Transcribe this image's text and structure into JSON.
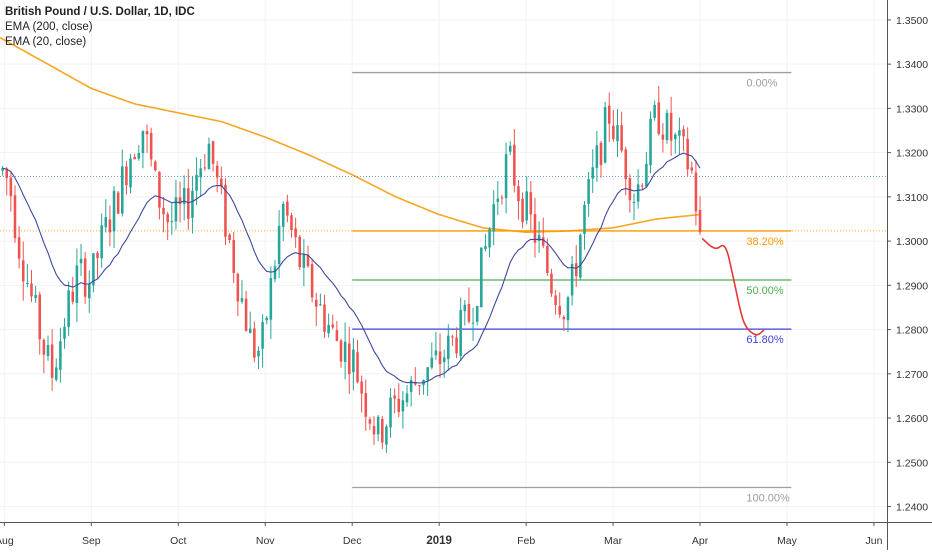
{
  "header": {
    "symbol": "British Pound / U.S. Dollar, 1D, IDC",
    "indicators": [
      "EMA (200, close)",
      "EMA (20, close)"
    ]
  },
  "colors": {
    "up": "#26a69a",
    "down": "#ef5350",
    "ema200": "#f5a623",
    "ema20": "#3d4a9e",
    "fib_0": "#9e9e9e",
    "fib_382": "#ff9800",
    "fib_50": "#4caf50",
    "fib_618": "#3f3fe0",
    "fib_100": "#9e9e9e",
    "hline_dotted": "#5b8bd6",
    "drawing": "#e53935",
    "axis_text": "#333333",
    "grid": "#f2f2f2"
  },
  "chart_data": {
    "type": "candlestick",
    "title": "British Pound / U.S. Dollar, 1D, IDC",
    "instrument": "GBPUSD",
    "timeframe": "1D",
    "y_ticks": [
      "1.3500",
      "1.3400",
      "1.3300",
      "1.3200",
      "1.3100",
      "1.3000",
      "1.2900",
      "1.2800",
      "1.2700",
      "1.2600",
      "1.2500",
      "1.2400"
    ],
    "ylim": [
      1.2365,
      1.3545
    ],
    "x_ticks": [
      "Aug",
      "Sep",
      "Oct",
      "Nov",
      "Dec",
      "2019",
      "Feb",
      "Mar",
      "Apr",
      "May",
      "Jun"
    ],
    "x_ticks_bold": [
      "2019"
    ],
    "xlim_months": [
      7.95,
      18.15
    ],
    "x_tick_months": [
      8,
      9,
      10,
      11,
      12,
      13,
      14,
      15,
      16,
      17,
      18
    ],
    "fibonacci": {
      "start_month": 12.0,
      "end_month": 17.05,
      "levels": [
        {
          "label": "0.00%",
          "price": 1.3381,
          "color_key": "fib_0"
        },
        {
          "label": "38.20%",
          "price": 1.3023,
          "color_key": "fib_382"
        },
        {
          "label": "50.00%",
          "price": 1.2912,
          "color_key": "fib_50"
        },
        {
          "label": "61.80%",
          "price": 1.2801,
          "color_key": "fib_618"
        },
        {
          "label": "100.00%",
          "price": 1.2443,
          "color_key": "fib_100"
        }
      ]
    },
    "horizontal_lines": [
      {
        "price": 1.3146,
        "style": "dotted",
        "color_key": "hline_dotted"
      },
      {
        "price": 1.3023,
        "style": "dotted",
        "color_key": "fib_382"
      }
    ],
    "ema200_anchors": [
      [
        7.95,
        1.346
      ],
      [
        8.5,
        1.34
      ],
      [
        9.0,
        1.3345
      ],
      [
        9.5,
        1.331
      ],
      [
        10.0,
        1.329
      ],
      [
        10.5,
        1.327
      ],
      [
        11.0,
        1.3235
      ],
      [
        11.5,
        1.3195
      ],
      [
        12.0,
        1.315
      ],
      [
        12.5,
        1.31
      ],
      [
        13.0,
        1.306
      ],
      [
        13.5,
        1.303
      ],
      [
        14.0,
        1.302
      ],
      [
        14.5,
        1.3023
      ],
      [
        15.0,
        1.303
      ],
      [
        15.5,
        1.305
      ],
      [
        16.0,
        1.306
      ]
    ],
    "price_anchors": [
      [
        7.95,
        1.317
      ],
      [
        8.06,
        1.313
      ],
      [
        8.15,
        1.301
      ],
      [
        8.3,
        1.288
      ],
      [
        8.45,
        1.276
      ],
      [
        8.55,
        1.27
      ],
      [
        8.7,
        1.283
      ],
      [
        8.85,
        1.293
      ],
      [
        9.0,
        1.291
      ],
      [
        9.1,
        1.299
      ],
      [
        9.3,
        1.31
      ],
      [
        9.45,
        1.32
      ],
      [
        9.6,
        1.326
      ],
      [
        9.75,
        1.311
      ],
      [
        9.9,
        1.304
      ],
      [
        10.1,
        1.308
      ],
      [
        10.2,
        1.315
      ],
      [
        10.35,
        1.322
      ],
      [
        10.5,
        1.308
      ],
      [
        10.65,
        1.294
      ],
      [
        10.85,
        1.276
      ],
      [
        10.95,
        1.275
      ],
      [
        11.1,
        1.294
      ],
      [
        11.2,
        1.308
      ],
      [
        11.3,
        1.302
      ],
      [
        11.4,
        1.295
      ],
      [
        11.6,
        1.286
      ],
      [
        11.8,
        1.278
      ],
      [
        12.0,
        1.274
      ],
      [
        12.15,
        1.264
      ],
      [
        12.3,
        1.256
      ],
      [
        12.45,
        1.262
      ],
      [
        12.65,
        1.266
      ],
      [
        12.8,
        1.27
      ],
      [
        13.0,
        1.273
      ],
      [
        13.15,
        1.277
      ],
      [
        13.35,
        1.283
      ],
      [
        13.5,
        1.295
      ],
      [
        13.65,
        1.31
      ],
      [
        13.8,
        1.319
      ],
      [
        13.9,
        1.312
      ],
      [
        14.0,
        1.307
      ],
      [
        14.15,
        1.299
      ],
      [
        14.3,
        1.29
      ],
      [
        14.45,
        1.285
      ],
      [
        14.55,
        1.292
      ],
      [
        14.65,
        1.305
      ],
      [
        14.8,
        1.317
      ],
      [
        14.95,
        1.329
      ],
      [
        15.05,
        1.323
      ],
      [
        15.15,
        1.317
      ],
      [
        15.25,
        1.31
      ],
      [
        15.35,
        1.317
      ],
      [
        15.5,
        1.329
      ],
      [
        15.65,
        1.324
      ],
      [
        15.8,
        1.32
      ],
      [
        15.9,
        1.316
      ],
      [
        16.0,
        1.302
      ]
    ],
    "candle_count": 170,
    "last_candle_month": 16.0,
    "last_close": 1.302
  },
  "annotation": {
    "type": "freehand-projection",
    "points": [
      [
        16.03,
        1.3005
      ],
      [
        16.18,
        1.2978
      ],
      [
        16.29,
        1.2998
      ],
      [
        16.38,
        1.292
      ],
      [
        16.46,
        1.2845
      ],
      [
        16.52,
        1.2805
      ],
      [
        16.65,
        1.2784
      ],
      [
        16.73,
        1.2798
      ]
    ]
  }
}
